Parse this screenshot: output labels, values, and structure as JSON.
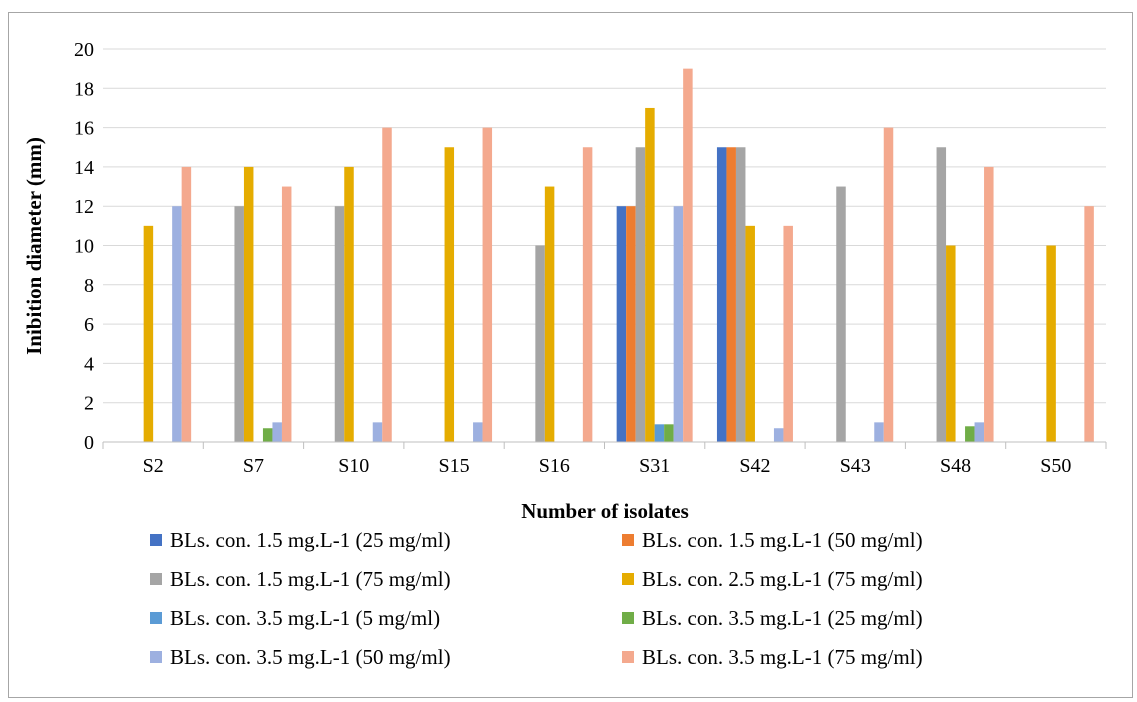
{
  "chart_data": {
    "type": "bar",
    "xlabel": "Number of isolates",
    "ylabel": "Inibition diameter (mm)",
    "ylim": [
      0,
      20
    ],
    "yticks": [
      "0",
      "2",
      "4",
      "6",
      "8",
      "10",
      "12",
      "14",
      "16",
      "18",
      "20"
    ],
    "grid": true,
    "legend_position": "bottom",
    "categories": [
      "S2",
      "S7",
      "S10",
      "S15",
      "S16",
      "S31",
      "S42",
      "S43",
      "S48",
      "S50"
    ],
    "series": [
      {
        "name": "BLs. con. 1.5 mg.L-1 (25 mg/ml)",
        "color": "#4472C4",
        "values": [
          0,
          0,
          0,
          0,
          0,
          12,
          15,
          0,
          0,
          0
        ]
      },
      {
        "name": "BLs. con. 1.5 mg.L-1 (50 mg/ml)",
        "color": "#ED7D31",
        "values": [
          0,
          0,
          0,
          0,
          0,
          12,
          15,
          0,
          0,
          0
        ]
      },
      {
        "name": "BLs. con. 1.5 mg.L-1 (75 mg/ml)",
        "color": "#A5A5A5",
        "values": [
          0,
          12,
          12,
          0,
          10,
          15,
          15,
          13,
          15,
          0
        ]
      },
      {
        "name": "BLs. con. 2.5 mg.L-1 (75 mg/ml)",
        "color": "#E5AC00",
        "values": [
          11,
          14,
          14,
          15,
          13,
          17,
          11,
          0,
          10,
          10
        ]
      },
      {
        "name": "BLs. con. 3.5 mg.L-1 (5 mg/ml)",
        "color": "#5B9BD5",
        "values": [
          0,
          0,
          0,
          0,
          0,
          0.9,
          0,
          0,
          0,
          0
        ]
      },
      {
        "name": "BLs. con. 3.5 mg.L-1 (25 mg/ml)",
        "color": "#70AD47",
        "values": [
          0,
          0.7,
          0,
          0,
          0,
          0.9,
          0,
          0,
          0.8,
          0
        ]
      },
      {
        "name": "BLs. con. 3.5 mg.L-1 (50 mg/ml)",
        "color": "#9DB0E0",
        "values": [
          12,
          1,
          1,
          1,
          0,
          12,
          0.7,
          1,
          1,
          0
        ]
      },
      {
        "name": "BLs. con. 3.5 mg.L-1 (75 mg/ml)",
        "color": "#F4A98E",
        "values": [
          14,
          13,
          16,
          16,
          15,
          19,
          11,
          16,
          14,
          12
        ]
      }
    ]
  }
}
